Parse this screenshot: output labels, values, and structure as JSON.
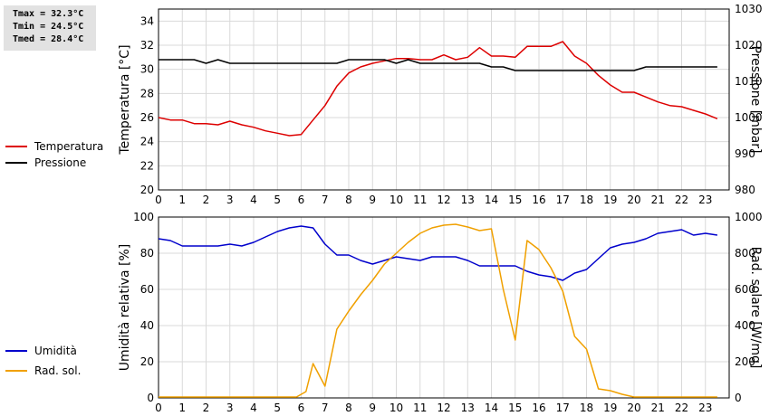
{
  "stats": {
    "tmax": "Tmax = 32.3°C",
    "tmin": "Tmin = 24.5°C",
    "tmed": "Tmed = 28.4°C"
  },
  "colors": {
    "temperature": "#dd0000",
    "pressure": "#000000",
    "humidity": "#0000cc",
    "radiation": "#f0a000",
    "grid": "#d9d9d9"
  },
  "chart_data": [
    {
      "type": "line",
      "x_ticks": [
        0,
        1,
        2,
        3,
        4,
        5,
        6,
        7,
        8,
        9,
        10,
        11,
        12,
        13,
        14,
        15,
        16,
        17,
        18,
        19,
        20,
        21,
        22,
        23
      ],
      "xlim": [
        0,
        24
      ],
      "ylabel": "Temperatura [°C]",
      "ylim": [
        20,
        35
      ],
      "y_ticks": [
        20,
        22,
        24,
        26,
        28,
        30,
        32,
        34
      ],
      "y2label": "Pressione [mbar]",
      "y2lim": [
        980,
        1030
      ],
      "y2_ticks": [
        980,
        990,
        1000,
        1010,
        1020,
        1030
      ],
      "grid": true,
      "legend_position": "left",
      "series": [
        {
          "name": "Temperatura",
          "axis": "left",
          "x": [
            0,
            0.5,
            1,
            1.5,
            2,
            2.5,
            3,
            3.5,
            4,
            4.5,
            5,
            5.5,
            6,
            6.5,
            7,
            7.5,
            8,
            8.5,
            9,
            9.5,
            10,
            10.5,
            11,
            11.5,
            12,
            12.5,
            13,
            13.5,
            14,
            14.5,
            15,
            15.5,
            16,
            16.5,
            17,
            17.5,
            18,
            18.5,
            19,
            19.5,
            20,
            20.5,
            21,
            21.5,
            22,
            22.5,
            23,
            23.5
          ],
          "y": [
            26.0,
            25.8,
            25.8,
            25.5,
            25.5,
            25.4,
            25.7,
            25.4,
            25.2,
            24.9,
            24.7,
            24.5,
            24.6,
            25.8,
            27.0,
            28.6,
            29.7,
            30.2,
            30.5,
            30.7,
            30.9,
            30.9,
            30.8,
            30.8,
            31.2,
            30.8,
            31.0,
            31.8,
            31.1,
            31.1,
            31.0,
            31.9,
            31.9,
            31.9,
            32.3,
            31.1,
            30.5,
            29.5,
            28.7,
            28.1,
            28.1,
            27.7,
            27.3,
            27.0,
            26.9,
            26.6,
            26.3,
            25.9
          ]
        },
        {
          "name": "Pressione",
          "axis": "right",
          "x": [
            0,
            0.5,
            1,
            1.5,
            2,
            2.5,
            3,
            3.5,
            4,
            4.5,
            5,
            5.5,
            6,
            6.5,
            7,
            7.5,
            8,
            8.5,
            9,
            9.5,
            10,
            10.5,
            11,
            11.5,
            12,
            12.5,
            13,
            13.5,
            14,
            14.5,
            15,
            15.5,
            16,
            16.5,
            17,
            17.5,
            18,
            18.5,
            19,
            19.5,
            20,
            20.5,
            21,
            21.5,
            22,
            22.5,
            23,
            23.5
          ],
          "y": [
            1016,
            1016,
            1016,
            1016,
            1015,
            1016,
            1015,
            1015,
            1015,
            1015,
            1015,
            1015,
            1015,
            1015,
            1015,
            1015,
            1016,
            1016,
            1016,
            1016,
            1015,
            1016,
            1015,
            1015,
            1015,
            1015,
            1015,
            1015,
            1014,
            1014,
            1013,
            1013,
            1013,
            1013,
            1013,
            1013,
            1013,
            1013,
            1013,
            1013,
            1013,
            1014,
            1014,
            1014,
            1014,
            1014,
            1014,
            1014
          ]
        }
      ]
    },
    {
      "type": "line",
      "x_ticks": [
        0,
        1,
        2,
        3,
        4,
        5,
        6,
        7,
        8,
        9,
        10,
        11,
        12,
        13,
        14,
        15,
        16,
        17,
        18,
        19,
        20,
        21,
        22,
        23
      ],
      "xlim": [
        0,
        24
      ],
      "ylabel": "Umidità relativa [%]",
      "ylim": [
        0,
        100
      ],
      "y_ticks": [
        0,
        20,
        40,
        60,
        80,
        100
      ],
      "y2label": "Rad. solare [W/mq]",
      "y2lim": [
        0,
        1000
      ],
      "y2_ticks": [
        0,
        200,
        400,
        600,
        800,
        1000
      ],
      "grid": true,
      "legend_position": "left",
      "series": [
        {
          "name": "Umidità",
          "axis": "left",
          "x": [
            0,
            0.5,
            1,
            1.5,
            2,
            2.5,
            3,
            3.5,
            4,
            4.5,
            5,
            5.5,
            6,
            6.5,
            7,
            7.5,
            8,
            8.5,
            9,
            9.5,
            10,
            10.5,
            11,
            11.5,
            12,
            12.5,
            13,
            13.5,
            14,
            14.5,
            15,
            15.5,
            16,
            16.5,
            17,
            17.5,
            18,
            18.5,
            19,
            19.5,
            20,
            20.5,
            21,
            21.5,
            22,
            22.5,
            23,
            23.5
          ],
          "y": [
            88,
            87,
            84,
            84,
            84,
            84,
            85,
            84,
            86,
            89,
            92,
            94,
            95,
            94,
            85,
            79,
            79,
            76,
            74,
            76,
            78,
            77,
            76,
            78,
            78,
            78,
            76,
            73,
            73,
            73,
            73,
            70,
            68,
            67,
            65,
            69,
            71,
            77,
            83,
            85,
            86,
            88,
            91,
            92,
            93,
            90,
            91,
            90
          ]
        },
        {
          "name": "Rad. sol.",
          "axis": "right",
          "x": [
            0,
            0.5,
            1,
            1.5,
            2,
            2.5,
            3,
            3.5,
            4,
            4.5,
            5,
            5.5,
            5.8,
            6.2,
            6.5,
            7,
            7.5,
            8,
            8.5,
            9,
            9.5,
            10,
            10.5,
            11,
            11.5,
            12,
            12.5,
            13,
            13.5,
            14,
            14.5,
            15,
            15.5,
            16,
            16.5,
            17,
            17.5,
            18,
            18.5,
            19,
            19.5,
            20,
            20.5,
            21,
            21.5,
            22,
            22.5,
            23,
            23.5
          ],
          "y": [
            5,
            5,
            5,
            5,
            5,
            5,
            5,
            5,
            5,
            5,
            5,
            5,
            5,
            35,
            190,
            65,
            380,
            480,
            570,
            650,
            740,
            800,
            860,
            910,
            940,
            955,
            960,
            945,
            925,
            935,
            600,
            320,
            870,
            820,
            720,
            590,
            340,
            270,
            50,
            40,
            20,
            5,
            5,
            5,
            5,
            5,
            5,
            5,
            5
          ]
        }
      ]
    }
  ]
}
